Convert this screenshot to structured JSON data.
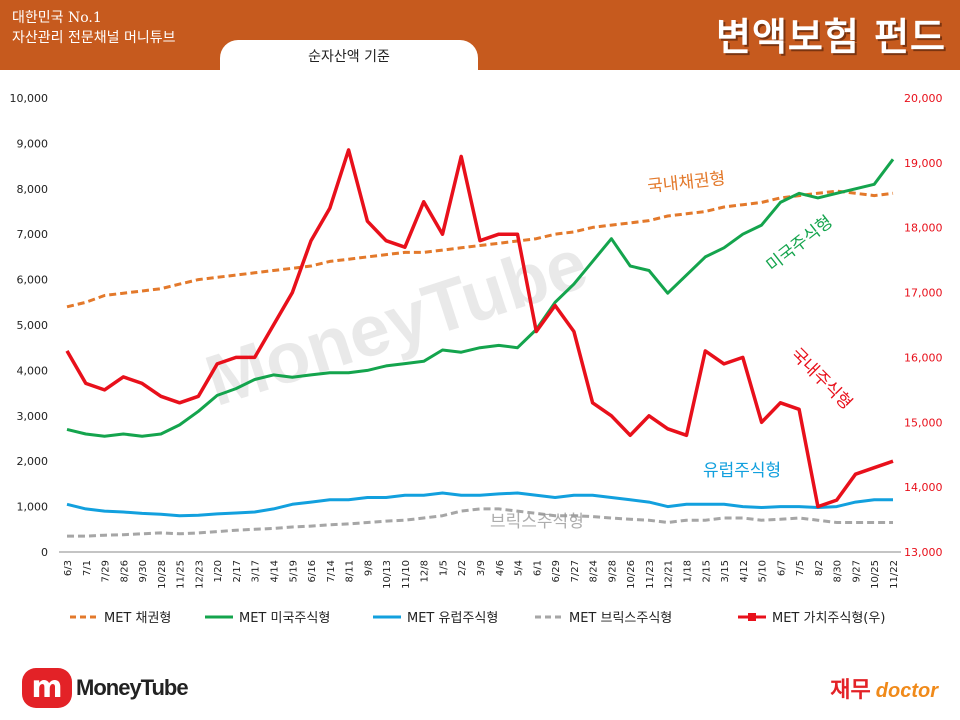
{
  "header": {
    "brand_line1": "대한민국 No.1",
    "brand_line2": "자산관리 전문채널 머니튜브",
    "title": "변액보험 펀드",
    "basis": "순자산액 기준"
  },
  "watermark": "MoneyTube",
  "footer": {
    "logo_mark": "m",
    "logo_text": "MoneyTube",
    "doctor_kr": "재무",
    "doctor_en": "doctor"
  },
  "colors": {
    "header_bg": "#c65a1e",
    "bond": "#e3792b",
    "us": "#14a44d",
    "europe": "#12a0de",
    "brics": "#a6a6a6",
    "value": "#e8101b"
  },
  "chart_data": {
    "type": "line",
    "left_axis": {
      "ylim": [
        0,
        10000
      ],
      "ticks": [
        "0",
        "1,000",
        "2,000",
        "3,000",
        "4,000",
        "5,000",
        "6,000",
        "7,000",
        "8,000",
        "9,000",
        "10,000"
      ]
    },
    "right_axis": {
      "ylim": [
        13000,
        20000
      ],
      "ticks": [
        "13,000",
        "14,000",
        "15,000",
        "16,000",
        "17,000",
        "18,000",
        "19,000",
        "20,000"
      ]
    },
    "x_ticks": [
      "6/3",
      "7/1",
      "7/29",
      "8/26",
      "9/30",
      "10/28",
      "11/25",
      "12/23",
      "1/20",
      "2/17",
      "3/17",
      "4/14",
      "5/19",
      "6/16",
      "7/14",
      "8/11",
      "9/8",
      "10/13",
      "11/10",
      "12/8",
      "1/5",
      "2/2",
      "3/9",
      "4/6",
      "5/4",
      "6/1",
      "6/29",
      "7/27",
      "8/24",
      "9/28",
      "10/26",
      "11/23",
      "12/21",
      "1/18",
      "2/15",
      "3/15",
      "4/12",
      "5/10",
      "6/7",
      "7/5",
      "8/2",
      "8/30",
      "9/27",
      "10/25",
      "11/22"
    ],
    "grid": false,
    "legend_position": "bottom",
    "series": [
      {
        "name": "MET 채권형",
        "axis": "left",
        "style": "dashed",
        "label": "국내채권형",
        "values": [
          5400,
          5500,
          5650,
          5700,
          5750,
          5800,
          5900,
          6000,
          6050,
          6100,
          6150,
          6200,
          6250,
          6300,
          6400,
          6450,
          6500,
          6550,
          6600,
          6600,
          6650,
          6700,
          6750,
          6800,
          6850,
          6900,
          7000,
          7050,
          7150,
          7200,
          7250,
          7300,
          7400,
          7450,
          7500,
          7600,
          7650,
          7700,
          7800,
          7850,
          7900,
          7950,
          7900,
          7850,
          7900
        ]
      },
      {
        "name": "MET 미국주식형",
        "axis": "left",
        "style": "solid",
        "label": "미국주식형",
        "values": [
          2700,
          2600,
          2550,
          2600,
          2550,
          2600,
          2800,
          3100,
          3450,
          3600,
          3800,
          3900,
          3850,
          3900,
          3950,
          3950,
          4000,
          4100,
          4150,
          4200,
          4450,
          4400,
          4500,
          4550,
          4500,
          4900,
          5500,
          5900,
          6400,
          6900,
          6300,
          6200,
          5700,
          6100,
          6500,
          6700,
          7000,
          7200,
          7700,
          7900,
          7800,
          7900,
          8000,
          8100,
          8650
        ]
      },
      {
        "name": "MET 유럽주식형",
        "axis": "left",
        "style": "solid",
        "label": "유럽주식형",
        "values": [
          1050,
          950,
          900,
          880,
          850,
          830,
          800,
          810,
          840,
          860,
          880,
          950,
          1050,
          1100,
          1150,
          1150,
          1200,
          1200,
          1250,
          1250,
          1300,
          1250,
          1250,
          1280,
          1300,
          1250,
          1200,
          1250,
          1250,
          1200,
          1150,
          1100,
          1000,
          1050,
          1050,
          1050,
          1000,
          980,
          1000,
          1000,
          980,
          1000,
          1100,
          1150,
          1150
        ]
      },
      {
        "name": "MET 브릭스주식형",
        "axis": "left",
        "style": "dashed",
        "label": "브릭스주식형",
        "values": [
          350,
          350,
          370,
          380,
          400,
          420,
          400,
          420,
          450,
          480,
          500,
          520,
          550,
          570,
          600,
          620,
          650,
          680,
          700,
          750,
          800,
          900,
          950,
          950,
          900,
          850,
          800,
          800,
          780,
          750,
          720,
          700,
          650,
          700,
          700,
          750,
          750,
          700,
          720,
          750,
          700,
          650,
          650,
          650,
          650
        ]
      },
      {
        "name": "MET 가치주식형(우)",
        "axis": "right",
        "style": "solid-markers",
        "label": "국내주식형",
        "values": [
          16100,
          15600,
          15500,
          15700,
          15600,
          15400,
          15300,
          15400,
          15900,
          16000,
          16000,
          16500,
          17000,
          17800,
          18300,
          19200,
          18100,
          17800,
          17700,
          18400,
          17900,
          19100,
          17800,
          17900,
          17900,
          16400,
          16800,
          16400,
          15300,
          15100,
          14800,
          15100,
          14900,
          14800,
          16100,
          15900,
          16000,
          15000,
          15300,
          15200,
          13700,
          13800,
          14200,
          14300,
          14400
        ]
      }
    ],
    "annotations": [
      "국내채권형",
      "미국주식형",
      "국내주식형",
      "유럽주식형",
      "브릭스주식형"
    ]
  }
}
